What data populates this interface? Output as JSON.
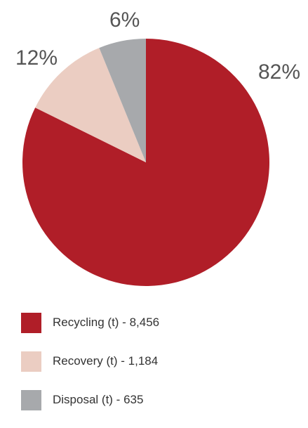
{
  "chart_data": {
    "type": "pie",
    "title": "",
    "slices": [
      {
        "label": "Recycling (t) - 8,456",
        "value": 8456,
        "percent_label": "82%",
        "color": "#b01e28"
      },
      {
        "label": "Recovery (t) - 1,184",
        "value": 1184,
        "percent_label": "12%",
        "color": "#ebcdc2"
      },
      {
        "label": "Disposal (t) - 635",
        "value": 635,
        "percent_label": "6%",
        "color": "#a7a9ac"
      }
    ],
    "start_angle": "12 o'clock",
    "direction": "clockwise",
    "legend_position": "bottom"
  }
}
